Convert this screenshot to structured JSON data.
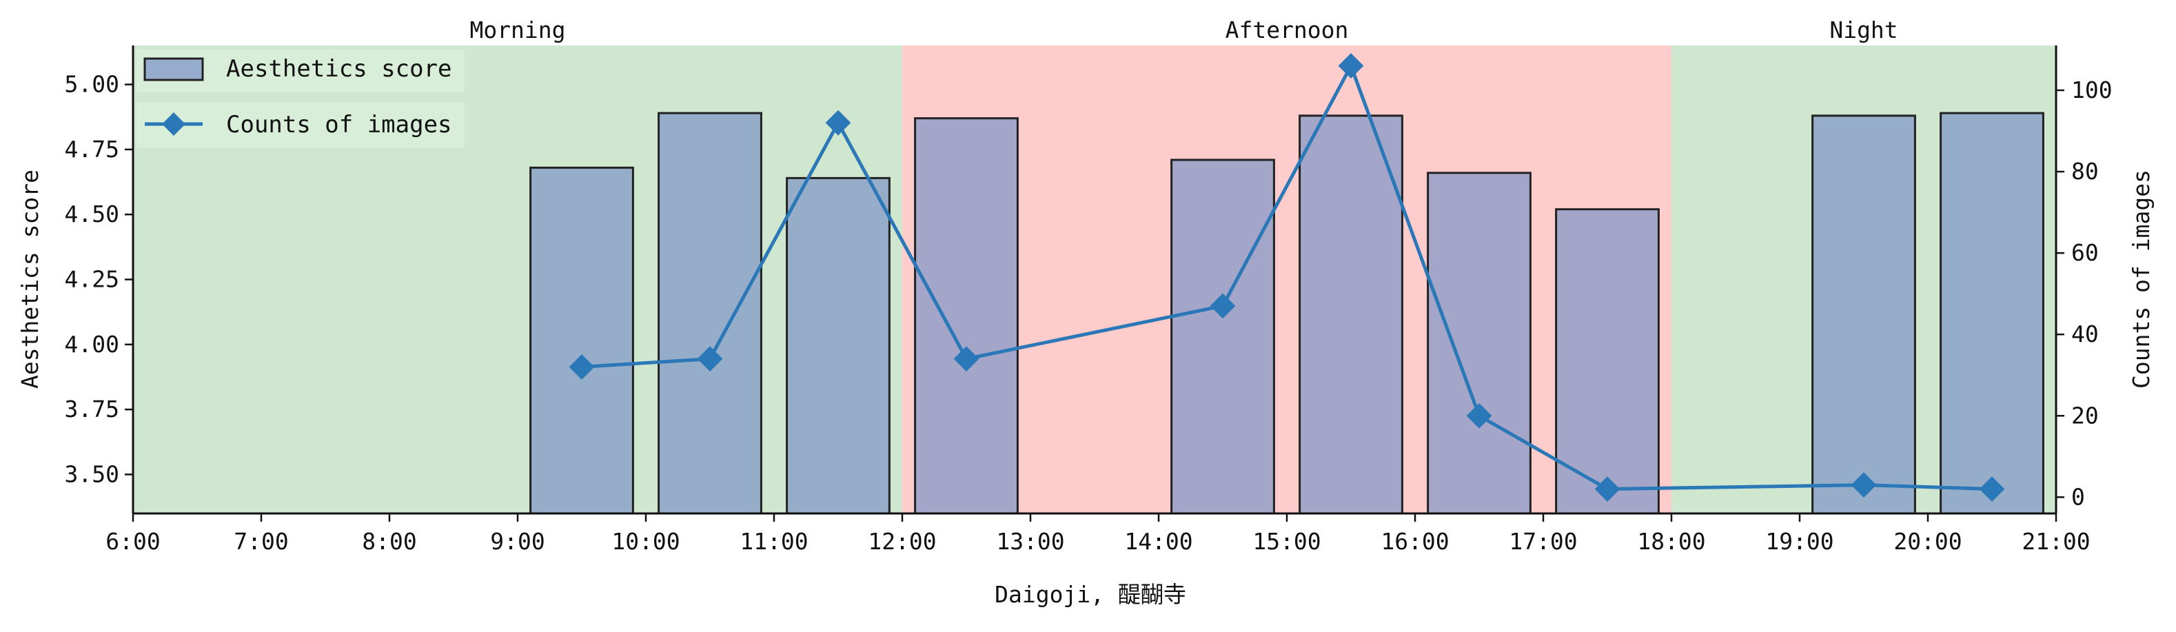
{
  "chart_data": {
    "type": "bar",
    "xlabel": "Daigoji, 醍醐寺",
    "ylabel": "Aesthetics score",
    "y2label": "Counts of images",
    "xlim": [
      6,
      21
    ],
    "ylim": [
      3.35,
      5.15
    ],
    "y2lim": [
      -4,
      111
    ],
    "x_ticks": [
      "6:00",
      "7:00",
      "8:00",
      "9:00",
      "10:00",
      "11:00",
      "12:00",
      "13:00",
      "14:00",
      "15:00",
      "16:00",
      "17:00",
      "18:00",
      "19:00",
      "20:00",
      "21:00"
    ],
    "y_ticks": [
      "3.50",
      "3.75",
      "4.00",
      "4.25",
      "4.50",
      "4.75",
      "5.00"
    ],
    "y2_ticks": [
      "0",
      "20",
      "40",
      "60",
      "80",
      "100"
    ],
    "periods": [
      {
        "label": "Morning",
        "start": 6,
        "end": 12,
        "color": "#cfe6cf"
      },
      {
        "label": "Afternoon",
        "start": 12,
        "end": 18,
        "color": "#ffcccc"
      },
      {
        "label": "Night",
        "start": 18,
        "end": 21,
        "color": "#cfe6cf"
      }
    ],
    "legend": {
      "placement": "top-left",
      "entries": [
        "Aesthetics score",
        "Counts of images"
      ]
    },
    "series": [
      {
        "name": "Aesthetics score",
        "kind": "bar",
        "color": "#8097c8",
        "x": [
          9.5,
          10.5,
          11.5,
          12.5,
          14.5,
          15.5,
          16.5,
          17.5,
          19.5,
          20.5
        ],
        "values": [
          4.68,
          4.89,
          4.64,
          4.87,
          4.71,
          4.88,
          4.66,
          4.52,
          4.88,
          4.89
        ]
      },
      {
        "name": "Counts of images",
        "kind": "line",
        "axis": "right",
        "color": "#2a78b7",
        "marker": "diamond",
        "x": [
          9.5,
          10.5,
          11.5,
          12.5,
          14.5,
          15.5,
          16.5,
          17.5,
          19.5,
          20.5
        ],
        "values": [
          32,
          34,
          92,
          34,
          47,
          106,
          20,
          2,
          3,
          2
        ]
      }
    ]
  }
}
